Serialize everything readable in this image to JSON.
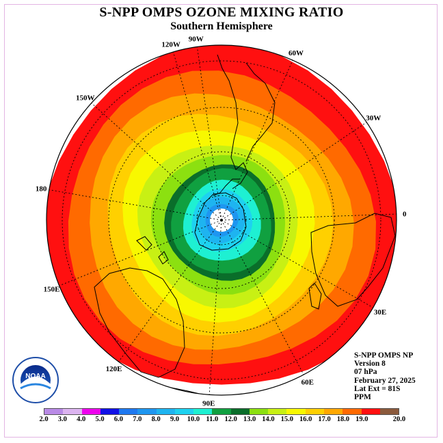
{
  "title": "S-NPP OMPS OZONE MIXING RATIO",
  "subtitle": "Southern Hemisphere",
  "longitude_labels": [
    "90W",
    "60W",
    "30W",
    "0",
    "30E",
    "60E",
    "90E",
    "120E",
    "150E",
    "180",
    "150W",
    "120W"
  ],
  "info": {
    "line1": "S-NPP OMPS NP",
    "line2": "Version 8",
    "line3": "07 hPa",
    "line4": "February 27, 2025",
    "line5": "Lat Ext = 81S",
    "line6": "PPM"
  },
  "logo": {
    "text": "NOAA",
    "ring_text": "NATIONAL OCEANIC AND ATMOSPHERIC ADMINISTRATION · U.S. DEPARTMENT OF COMMERCE"
  },
  "colorbar": {
    "labels": [
      "2.0",
      "3.0",
      "4.0",
      "5.0",
      "6.0",
      "7.0",
      "8.0",
      "9.0",
      "10.0",
      "11.0",
      "12.0",
      "13.0",
      "14.0",
      "15.0",
      "16.0",
      "17.0",
      "18.0",
      "19.0",
      "20.0"
    ],
    "colors": [
      "#b98ae6",
      "#dcb4f0",
      "#ee00ee",
      "#1010e6",
      "#1e78f0",
      "#1e96f0",
      "#1eb4f0",
      "#1ed2f0",
      "#1ef0d2",
      "#10a040",
      "#0a6e2a",
      "#8ce010",
      "#c8f014",
      "#f8f800",
      "#ffd000",
      "#ffa800",
      "#ff6a00",
      "#ff1010",
      "#8b5a3c"
    ]
  },
  "contours": [
    {
      "value": 19.0,
      "color": "#ff1010"
    },
    {
      "value": 18.0,
      "color": "#ff6a00"
    },
    {
      "value": 17.0,
      "color": "#ffa800"
    },
    {
      "value": 16.0,
      "color": "#ffd000"
    },
    {
      "value": 15.0,
      "color": "#f8f800"
    },
    {
      "value": 14.0,
      "color": "#c8f014"
    },
    {
      "value": 13.0,
      "color": "#8ce010"
    },
    {
      "value": 12.0,
      "color": "#0a6e2a"
    },
    {
      "value": 11.0,
      "color": "#10a040"
    },
    {
      "value": 10.0,
      "color": "#1ef0d2"
    },
    {
      "value": 9.0,
      "color": "#1ed2f0"
    },
    {
      "value": 8.0,
      "color": "#1eb4f0"
    },
    {
      "value": 7.0,
      "color": "#1e96f0"
    }
  ]
}
